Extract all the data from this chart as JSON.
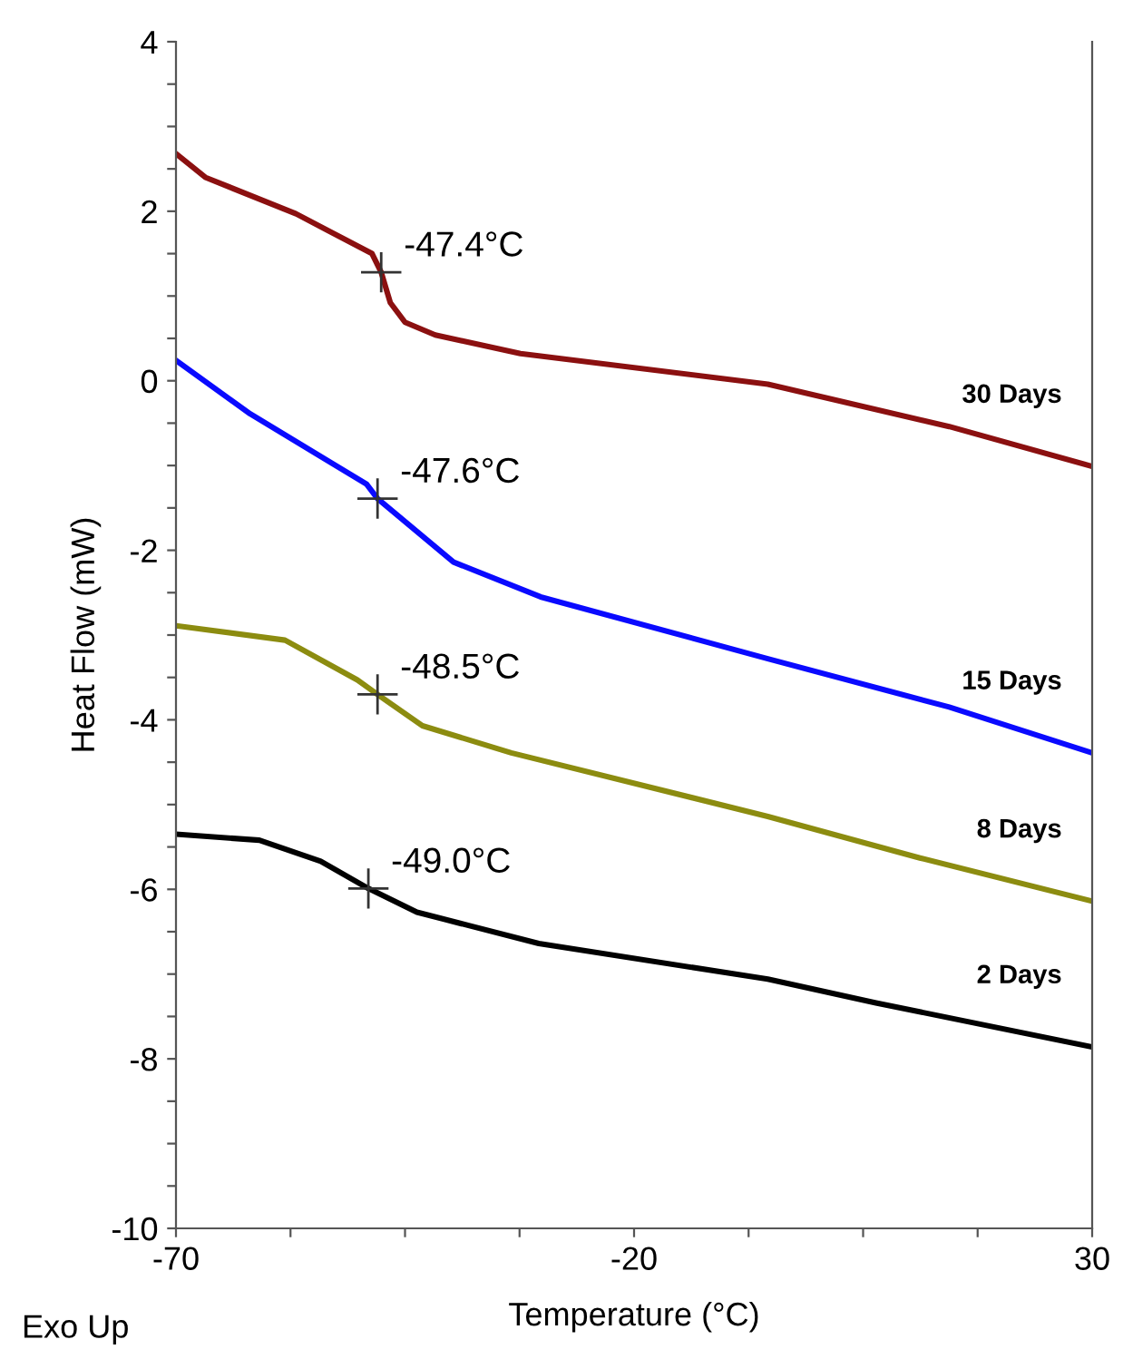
{
  "chart_data": {
    "type": "line",
    "xlabel": "Temperature (°C)",
    "ylabel": "Heat Flow (mW)",
    "xlim": [
      -70,
      30
    ],
    "ylim": [
      -10,
      4
    ],
    "xticks": [
      -70,
      {
        "value": -57.5,
        "label": null
      },
      {
        "value": -45,
        "label": null
      },
      {
        "value": -32.5,
        "label": null
      },
      -20,
      {
        "value": -7.5,
        "label": null
      },
      {
        "value": 5,
        "label": null
      },
      {
        "value": 17.5,
        "label": null
      },
      30
    ],
    "yticks": [
      -10,
      {
        "value": -9.5,
        "label": null
      },
      {
        "value": -9,
        "label": null
      },
      {
        "value": -8.5,
        "label": null
      },
      -8,
      {
        "value": -7.5,
        "label": null
      },
      {
        "value": -7,
        "label": null
      },
      {
        "value": -6.5,
        "label": null
      },
      -6,
      {
        "value": -5.5,
        "label": null
      },
      {
        "value": -5,
        "label": null
      },
      {
        "value": -4.5,
        "label": null
      },
      -4,
      {
        "value": -3.5,
        "label": null
      },
      {
        "value": -3,
        "label": null
      },
      {
        "value": -2.5,
        "label": null
      },
      -2,
      {
        "value": -1.5,
        "label": null
      },
      {
        "value": -1,
        "label": null
      },
      {
        "value": -0.5,
        "label": null
      },
      0,
      {
        "value": 0.5,
        "label": null
      },
      {
        "value": 1,
        "label": null
      },
      {
        "value": 1.5,
        "label": null
      },
      2,
      {
        "value": 2.5,
        "label": null
      },
      {
        "value": 3,
        "label": null
      },
      {
        "value": 3.5,
        "label": null
      },
      4
    ],
    "grid": false,
    "legend": false,
    "marker": "none",
    "line_style": "solid",
    "series": [
      {
        "name": "30 Days",
        "color": "#8b1010",
        "x": [
          -70,
          -66.8,
          -56.9,
          -48.6,
          -47.6,
          -46.6,
          -45.0,
          -41.7,
          -32.4,
          -5.4,
          14.4,
          30
        ],
        "values": [
          2.68,
          2.4,
          1.97,
          1.5,
          1.28,
          0.92,
          0.69,
          0.54,
          0.32,
          -0.04,
          -0.54,
          -1.01
        ]
      },
      {
        "name": "15 Days",
        "color": "#0a0aff",
        "x": [
          -70,
          -61.9,
          -49.2,
          -48.0,
          -39.7,
          -30.2,
          -5.4,
          14.4,
          30
        ],
        "values": [
          0.24,
          -0.39,
          -1.22,
          -1.39,
          -2.14,
          -2.55,
          -3.28,
          -3.85,
          -4.39
        ]
      },
      {
        "name": "8 Days",
        "color": "#8c8c10",
        "x": [
          -70,
          -58.1,
          -50.2,
          -48.0,
          -43.1,
          -33.4,
          -5.4,
          11.2,
          30
        ],
        "values": [
          -2.89,
          -3.06,
          -3.53,
          -3.7,
          -4.07,
          -4.39,
          -5.14,
          -5.63,
          -6.14
        ]
      },
      {
        "name": "2 Days",
        "color": "#000000",
        "x": [
          -70,
          -60.9,
          -54.2,
          -49.0,
          -43.7,
          -30.4,
          -5.4,
          6.4,
          30
        ],
        "values": [
          -5.35,
          -5.42,
          -5.67,
          -5.99,
          -6.27,
          -6.64,
          -7.06,
          -7.34,
          -7.86
        ]
      }
    ],
    "annotations": [
      {
        "text": "-47.4°C",
        "x": -47.6,
        "y": 1.28
      },
      {
        "text": "-47.6°C",
        "x": -48.0,
        "y": -1.39
      },
      {
        "text": "-48.5°C",
        "x": -48.0,
        "y": -3.7
      },
      {
        "text": "-49.0°C",
        "x": -49.0,
        "y": -5.99
      },
      "Exo Up"
    ]
  }
}
